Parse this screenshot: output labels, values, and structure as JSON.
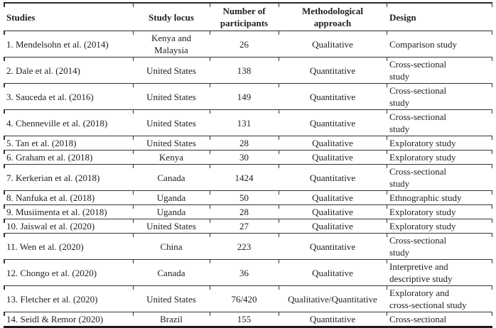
{
  "table": {
    "columns": [
      "Studies",
      "Study locus",
      "Number of\nparticipants",
      "Methodological\napproach",
      "Design"
    ],
    "rows": [
      [
        "1. Mendelsohn et al. (2014)",
        "Kenya and\nMalaysia",
        "26",
        "Qualitative",
        "Comparison study"
      ],
      [
        "2. Dale et al. (2014)",
        "United States",
        "138",
        "Quantitative",
        "Cross-sectional\nstudy"
      ],
      [
        "3. Sauceda et al. (2016)",
        "United States",
        "149",
        "Quantitative",
        "Cross-sectional\nstudy"
      ],
      [
        "4. Chenneville et al. (2018)",
        "United States",
        "131",
        "Quantitative",
        "Cross-sectional\nstudy"
      ],
      [
        "5. Tan et al. (2018)",
        "United States",
        "28",
        "Qualitative",
        "Exploratory study"
      ],
      [
        "6. Graham et al. (2018)",
        "Kenya",
        "30",
        "Qualitative",
        "Exploratory study"
      ],
      [
        "7. Kerkerian et al. (2018)",
        "Canada",
        "1424",
        "Quantitative",
        "Cross-sectional\nstudy"
      ],
      [
        "8. Nanfuka et al. (2018)",
        "Uganda",
        "50",
        "Qualitative",
        "Ethnographic study"
      ],
      [
        "9. Musiimenta et al. (2018)",
        "Uganda",
        "28",
        "Qualitative",
        "Exploratory study"
      ],
      [
        "10. Jaiswal et al. (2020)",
        "United States",
        "27",
        "Qualitative",
        "Exploratory study"
      ],
      [
        "11. Wen et al. (2020)",
        "China",
        "223",
        "Quantitative",
        "Cross-sectional\nstudy"
      ],
      [
        "12. Chongo et al. (2020)",
        "Canada",
        "36",
        "Qualitative",
        "Interpretive and\ndescriptive study"
      ],
      [
        "13. Fletcher et al. (2020)",
        "United States",
        "76/420",
        "Qualitative/Quantitative",
        "Exploratory and\ncross-sectional study"
      ],
      [
        "14. Seidl & Remor (2020)",
        "Brazil",
        "155",
        "Quantitative",
        "Cross-sectional"
      ]
    ],
    "colors": {
      "text": "#1e1e1e",
      "rule_line": "#343434",
      "background": "#ffffff"
    }
  }
}
